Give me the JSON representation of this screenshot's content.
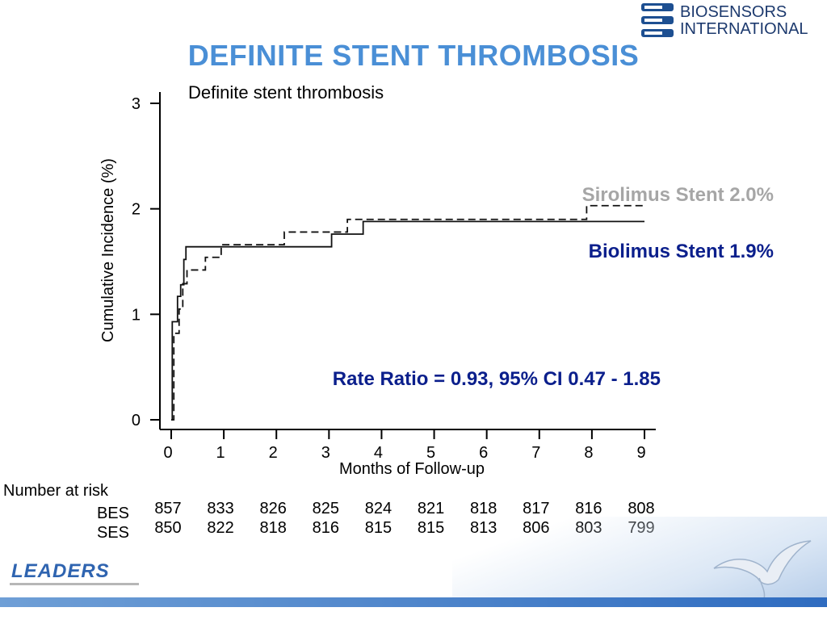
{
  "slide": {
    "title": "DEFINITE STENT THROMBOSIS",
    "brand_line1": "BIOSENSORS",
    "brand_line2": "INTERNATIONAL",
    "footer_logo": "LEADERS"
  },
  "chart_data": {
    "type": "line",
    "title": "Definite stent thrombosis",
    "xlabel": "Months of Follow-up",
    "ylabel": "Cumulative Incidence (%)",
    "xlim": [
      0,
      9
    ],
    "ylim": [
      0,
      3
    ],
    "x_ticks": [
      0,
      1,
      2,
      3,
      4,
      5,
      6,
      7,
      8,
      9
    ],
    "y_ticks": [
      0,
      1,
      2,
      3
    ],
    "series": [
      {
        "name": "Biolimus Stent 1.9%",
        "label_color": "#0b1f8c",
        "line_style": "solid",
        "steps": [
          [
            0,
            0
          ],
          [
            0.02,
            0.93
          ],
          [
            0.12,
            1.17
          ],
          [
            0.18,
            1.28
          ],
          [
            0.24,
            1.52
          ],
          [
            0.28,
            1.64
          ],
          [
            3.0,
            1.64
          ],
          [
            3.05,
            1.76
          ],
          [
            3.6,
            1.76
          ],
          [
            3.65,
            1.88
          ],
          [
            9.0,
            1.88
          ]
        ]
      },
      {
        "name": "Sirolimus Stent 2.0%",
        "label_color": "#a6a6a6",
        "line_style": "dashed",
        "steps": [
          [
            0,
            0
          ],
          [
            0.05,
            0.82
          ],
          [
            0.15,
            1.05
          ],
          [
            0.22,
            1.29
          ],
          [
            0.3,
            1.42
          ],
          [
            0.6,
            1.42
          ],
          [
            0.65,
            1.54
          ],
          [
            0.9,
            1.54
          ],
          [
            0.95,
            1.66
          ],
          [
            2.1,
            1.66
          ],
          [
            2.15,
            1.78
          ],
          [
            3.3,
            1.78
          ],
          [
            3.35,
            1.9
          ],
          [
            7.85,
            1.9
          ],
          [
            7.9,
            2.03
          ],
          [
            9.0,
            2.03
          ]
        ]
      }
    ],
    "annotation": "Rate Ratio = 0.93, 95% CI 0.47 - 1.85",
    "number_at_risk": {
      "header": "Number at risk",
      "rows": [
        {
          "label": "BES",
          "values": [
            "857",
            "833",
            "826",
            "825",
            "824",
            "821",
            "818",
            "817",
            "816",
            "808"
          ]
        },
        {
          "label": "SES",
          "values": [
            "850",
            "822",
            "818",
            "816",
            "815",
            "815",
            "813",
            "806",
            "803",
            "799"
          ]
        }
      ]
    }
  }
}
